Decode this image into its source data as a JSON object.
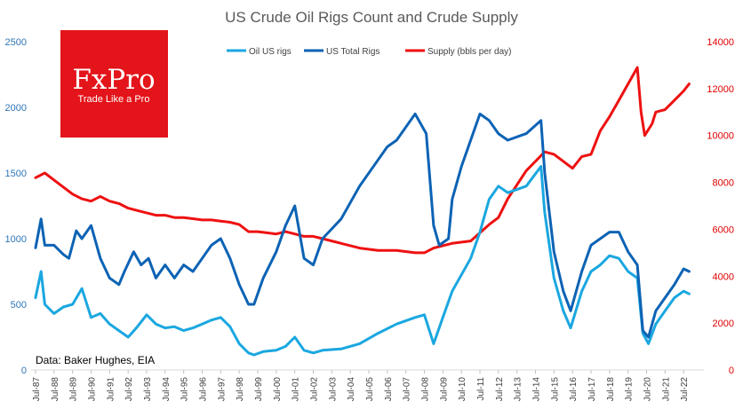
{
  "chart_data": {
    "type": "line",
    "title": "US Crude Oil Rigs Count and Crude Supply",
    "source_note": "Data: Baker Hughes, EIA",
    "legend_position": "top-center",
    "grid": false,
    "y_left": {
      "range": [
        0,
        2500
      ],
      "ticks": [
        "0",
        "500",
        "1000",
        "1500",
        "2000",
        "2500"
      ],
      "color": "#2e75b6"
    },
    "y_right": {
      "range": [
        0,
        14000
      ],
      "ticks": [
        "0",
        "2000",
        "4000",
        "6000",
        "8000",
        "10000",
        "12000",
        "14000"
      ],
      "color": "#e00000"
    },
    "x_ticks": [
      "Jul-87",
      "Jul-88",
      "Jul-89",
      "Jul-90",
      "Jul-91",
      "Jul-92",
      "Jul-93",
      "Jul-94",
      "Jul-95",
      "Jul-96",
      "Jul-97",
      "Jul-98",
      "Jul-99",
      "Jul-00",
      "Jul-01",
      "Jul-02",
      "Jul-03",
      "Jul-04",
      "Jul-05",
      "Jul-06",
      "Jul-07",
      "Jul-08",
      "Jul-09",
      "Jul-10",
      "Jul-11",
      "Jul-12",
      "Jul-13",
      "Jul-14",
      "Jul-15",
      "Jul-16",
      "Jul-17",
      "Jul-18",
      "Jul-19",
      "Jul-20",
      "Jul-21",
      "Jul-22"
    ],
    "series": [
      {
        "name": "Oil US rigs",
        "axis": "left",
        "color": "#1aa7e0",
        "x": [
          1987.5,
          1987.8,
          1988.0,
          1988.5,
          1989.0,
          1989.5,
          1990.0,
          1990.5,
          1991.0,
          1991.5,
          1992.0,
          1992.5,
          1993.0,
          1993.5,
          1994.0,
          1994.5,
          1995.0,
          1995.5,
          1996.0,
          1996.5,
          1997.0,
          1997.5,
          1998.0,
          1998.5,
          1999.0,
          1999.3,
          1999.8,
          2000.5,
          2001.0,
          2001.5,
          2002.0,
          2002.5,
          2003.0,
          2004.0,
          2005.0,
          2006.0,
          2007.0,
          2008.0,
          2008.5,
          2009.0,
          2009.5,
          2010.0,
          2011.0,
          2011.5,
          2012.0,
          2012.5,
          2013.0,
          2014.0,
          2014.8,
          2015.0,
          2015.5,
          2016.0,
          2016.4,
          2017.0,
          2017.5,
          2018.0,
          2018.5,
          2019.0,
          2019.5,
          2020.0,
          2020.3,
          2020.6,
          2021.0,
          2021.5,
          2022.0,
          2022.5,
          2022.8
        ],
        "values": [
          550,
          750,
          500,
          430,
          480,
          500,
          620,
          400,
          430,
          350,
          300,
          250,
          330,
          420,
          350,
          320,
          330,
          300,
          320,
          350,
          380,
          400,
          330,
          200,
          130,
          115,
          140,
          150,
          180,
          250,
          150,
          130,
          150,
          160,
          200,
          280,
          350,
          400,
          420,
          200,
          400,
          600,
          850,
          1050,
          1300,
          1400,
          1350,
          1400,
          1550,
          1200,
          700,
          450,
          320,
          600,
          750,
          800,
          870,
          850,
          750,
          700,
          280,
          200,
          350,
          450,
          550,
          600,
          580
        ]
      },
      {
        "name": "US Total Rigs",
        "axis": "left",
        "color": "#0c63b4",
        "x": [
          1987.5,
          1987.8,
          1988.0,
          1988.5,
          1989.0,
          1989.3,
          1989.7,
          1990.0,
          1990.5,
          1991.0,
          1991.5,
          1992.0,
          1992.3,
          1992.8,
          1993.2,
          1993.6,
          1994.0,
          1994.5,
          1995.0,
          1995.5,
          1996.0,
          1996.5,
          1997.0,
          1997.5,
          1998.0,
          1998.5,
          1999.0,
          1999.3,
          1999.8,
          2000.5,
          2001.0,
          2001.5,
          2002.0,
          2002.5,
          2003.0,
          2004.0,
          2005.0,
          2006.0,
          2006.5,
          2007.0,
          2007.5,
          2008.0,
          2008.6,
          2009.0,
          2009.3,
          2009.8,
          2010.0,
          2010.5,
          2011.0,
          2011.5,
          2012.0,
          2012.5,
          2013.0,
          2014.0,
          2014.8,
          2015.0,
          2015.5,
          2016.0,
          2016.4,
          2017.0,
          2017.5,
          2018.0,
          2018.5,
          2019.0,
          2019.5,
          2020.0,
          2020.3,
          2020.6,
          2021.0,
          2021.5,
          2022.0,
          2022.5,
          2022.8
        ],
        "values": [
          930,
          1150,
          950,
          950,
          880,
          850,
          1060,
          1000,
          1100,
          850,
          700,
          650,
          750,
          900,
          800,
          850,
          700,
          800,
          700,
          800,
          750,
          850,
          950,
          1000,
          850,
          650,
          500,
          500,
          700,
          900,
          1100,
          1250,
          850,
          800,
          1000,
          1150,
          1400,
          1600,
          1700,
          1750,
          1850,
          1950,
          1800,
          1100,
          950,
          1000,
          1300,
          1550,
          1750,
          1950,
          1900,
          1800,
          1750,
          1800,
          1900,
          1500,
          900,
          600,
          450,
          750,
          950,
          1000,
          1050,
          1050,
          900,
          800,
          300,
          250,
          450,
          550,
          650,
          770,
          750
        ]
      },
      {
        "name": "Supply (bbls per day)",
        "axis": "right",
        "color": "#ee1111",
        "x": [
          1987.5,
          1988.0,
          1988.5,
          1989.0,
          1989.5,
          1990.0,
          1990.5,
          1991.0,
          1991.5,
          1992.0,
          1992.5,
          1993.0,
          1993.5,
          1994.0,
          1994.5,
          1995.0,
          1995.5,
          1996.0,
          1996.5,
          1997.0,
          1997.5,
          1998.0,
          1998.5,
          1999.0,
          1999.5,
          2000.0,
          2000.5,
          2001.0,
          2001.5,
          2002.0,
          2002.5,
          2003.0,
          2004.0,
          2005.0,
          2006.0,
          2007.0,
          2008.0,
          2008.5,
          2009.0,
          2009.5,
          2010.0,
          2011.0,
          2012.0,
          2012.5,
          2013.0,
          2014.0,
          2015.0,
          2015.5,
          2016.0,
          2016.5,
          2017.0,
          2017.5,
          2018.0,
          2018.5,
          2019.0,
          2019.5,
          2020.0,
          2020.2,
          2020.4,
          2020.8,
          2021.0,
          2021.5,
          2022.0,
          2022.5,
          2022.8
        ],
        "values": [
          8200,
          8400,
          8100,
          7800,
          7500,
          7300,
          7200,
          7400,
          7200,
          7100,
          6900,
          6800,
          6700,
          6600,
          6600,
          6500,
          6500,
          6450,
          6400,
          6400,
          6350,
          6300,
          6200,
          5900,
          5900,
          5850,
          5800,
          5900,
          5800,
          5700,
          5700,
          5600,
          5400,
          5200,
          5100,
          5100,
          5000,
          5000,
          5200,
          5300,
          5400,
          5500,
          6200,
          6500,
          7300,
          8500,
          9300,
          9200,
          8900,
          8600,
          9100,
          9200,
          10200,
          10800,
          11500,
          12200,
          12900,
          11000,
          10000,
          10500,
          11000,
          11100,
          11500,
          11900,
          12200
        ]
      }
    ]
  }
}
